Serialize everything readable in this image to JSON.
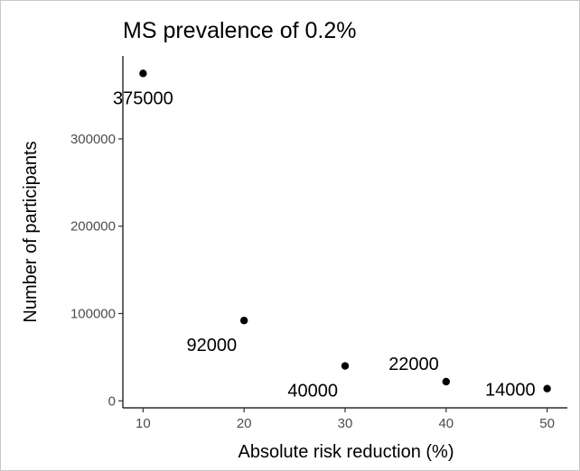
{
  "chart_data": {
    "type": "scatter",
    "title": "MS prevalence of 0.2%",
    "xlabel": "Absolute risk reduction (%)",
    "ylabel": "Number of participants",
    "xlim": [
      8,
      52
    ],
    "ylim": [
      -8000,
      395000
    ],
    "x_ticks": [
      10,
      20,
      30,
      40,
      50
    ],
    "y_ticks": [
      0,
      100000,
      200000,
      300000
    ],
    "grid": false,
    "legend": "none",
    "point_color": "#000000",
    "points": [
      {
        "x": 10,
        "y": 375000,
        "label": "375000",
        "label_pos": "below"
      },
      {
        "x": 20,
        "y": 92000,
        "label": "92000",
        "label_pos": "below-left"
      },
      {
        "x": 30,
        "y": 40000,
        "label": "40000",
        "label_pos": "below-left"
      },
      {
        "x": 40,
        "y": 22000,
        "label": "22000",
        "label_pos": "above-left"
      },
      {
        "x": 50,
        "y": 14000,
        "label": "14000",
        "label_pos": "left"
      }
    ]
  }
}
